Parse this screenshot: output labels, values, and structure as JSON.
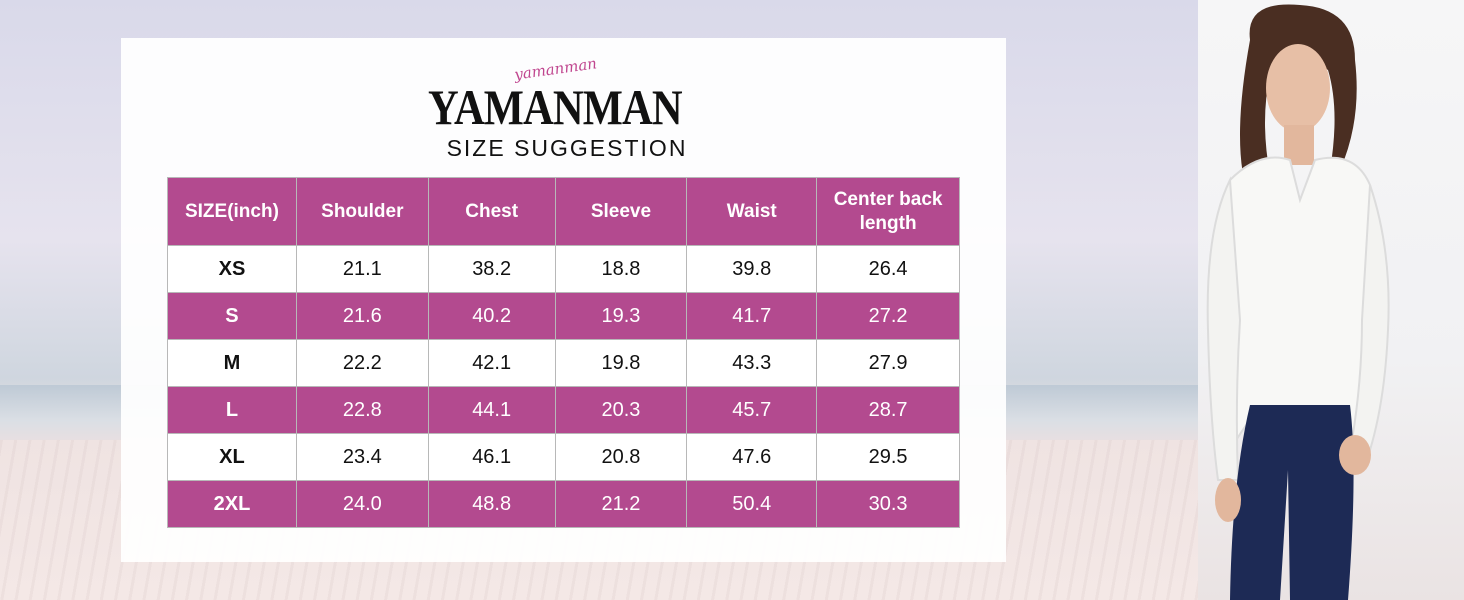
{
  "brand": {
    "script": "yamanman",
    "name": "YAMANMAN",
    "subtitle": "SIZE SUGGESTION"
  },
  "table": {
    "headers": [
      "SIZE(inch)",
      "Shoulder",
      "Chest",
      "Sleeve",
      "Waist",
      "Center back length"
    ],
    "rows": [
      [
        "XS",
        "21.1",
        "38.2",
        "18.8",
        "39.8",
        "26.4"
      ],
      [
        "S",
        "21.6",
        "40.2",
        "19.3",
        "41.7",
        "27.2"
      ],
      [
        "M",
        "22.2",
        "42.1",
        "19.8",
        "43.3",
        "27.9"
      ],
      [
        "L",
        "22.8",
        "44.1",
        "20.3",
        "45.7",
        "28.7"
      ],
      [
        "XL",
        "23.4",
        "46.1",
        "20.8",
        "47.6",
        "29.5"
      ],
      [
        "2XL",
        "24.0",
        "48.8",
        "21.2",
        "50.4",
        "30.3"
      ]
    ]
  },
  "colors": {
    "accent": "#b34a8f",
    "script": "#c0468f"
  }
}
